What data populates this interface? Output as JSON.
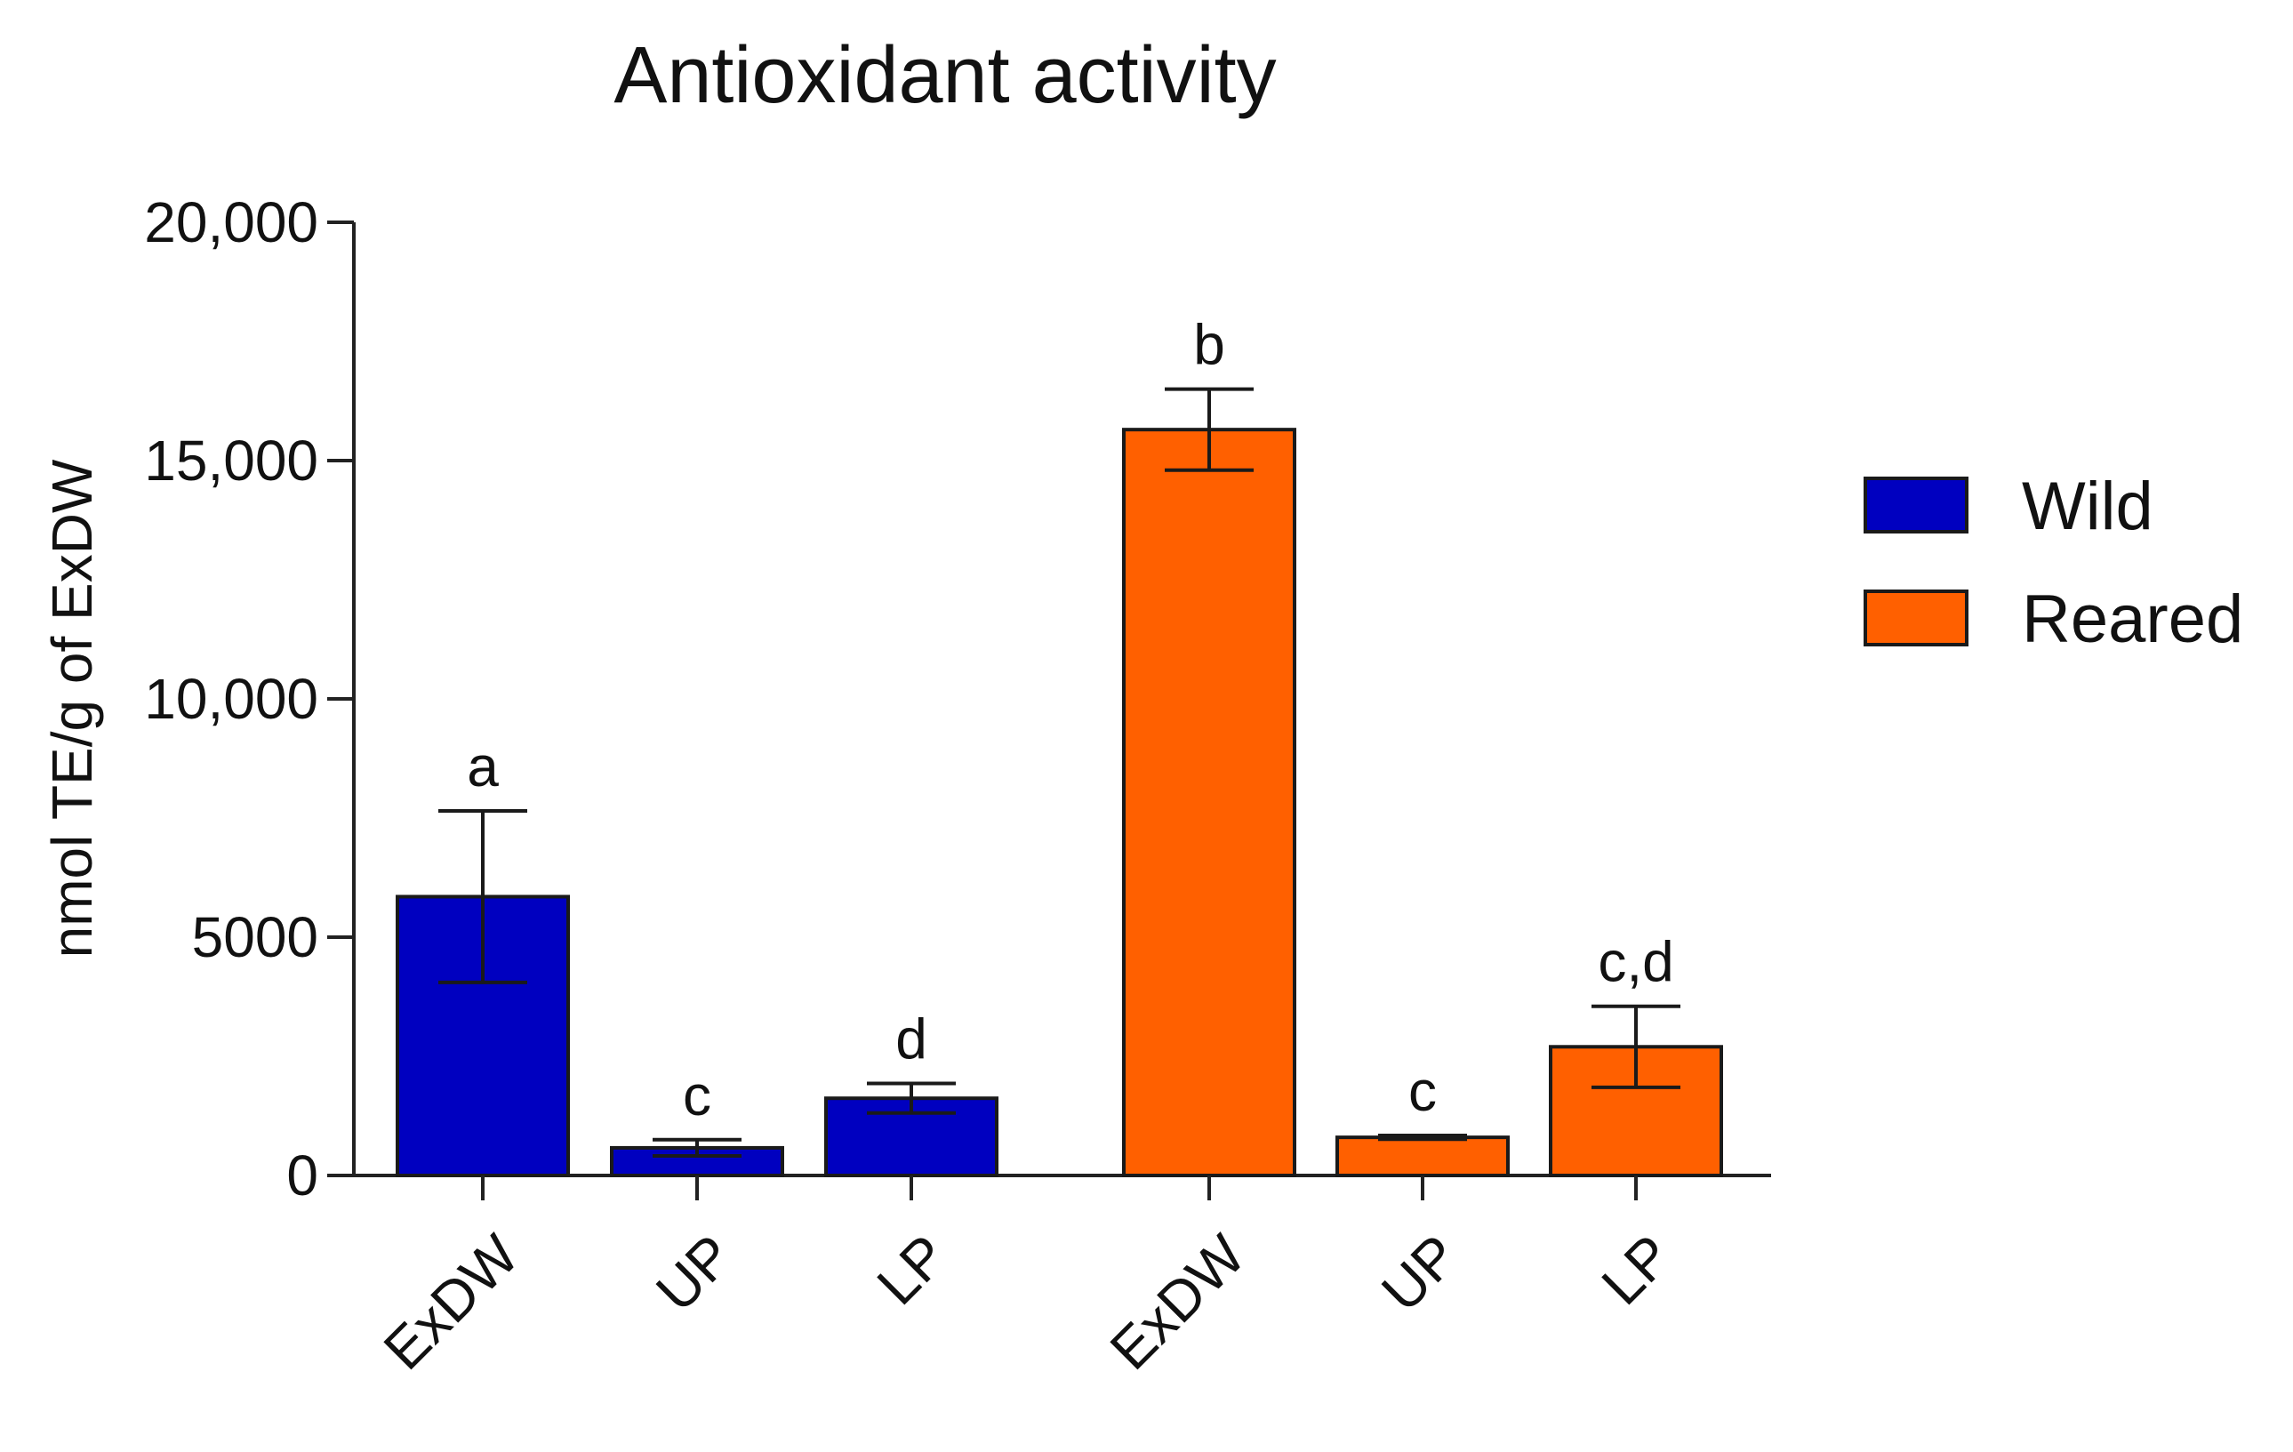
{
  "chart_data": {
    "type": "bar",
    "title": "Antioxidant activity",
    "ylabel": "nmol TE/g of ExDW",
    "xlabel": "",
    "ylim": [
      0,
      20000
    ],
    "yticks": [
      0,
      5000,
      10000,
      15000,
      20000
    ],
    "ytick_labels": [
      "0",
      "5000",
      "10,000",
      "15,000",
      "20,000"
    ],
    "groups": [
      {
        "name": "Wild",
        "color": "#0000c0",
        "bars": [
          {
            "category": "ExDW",
            "value": 5850,
            "error": 1800,
            "letter": "a"
          },
          {
            "category": "UP",
            "value": 580,
            "error": 170,
            "letter": "c"
          },
          {
            "category": "LP",
            "value": 1620,
            "error": 310,
            "letter": "d"
          }
        ]
      },
      {
        "name": "Reared",
        "color": "#ff6000",
        "bars": [
          {
            "category": "ExDW",
            "value": 15650,
            "error": 850,
            "letter": "b"
          },
          {
            "category": "UP",
            "value": 800,
            "error": 40,
            "letter": "c"
          },
          {
            "category": "LP",
            "value": 2700,
            "error": 850,
            "letter": "c,d"
          }
        ]
      }
    ],
    "legend": {
      "position": "right",
      "entries": [
        {
          "label": "Wild",
          "color": "#0000c0"
        },
        {
          "label": "Reared",
          "color": "#ff6000"
        }
      ]
    },
    "grid": false
  }
}
